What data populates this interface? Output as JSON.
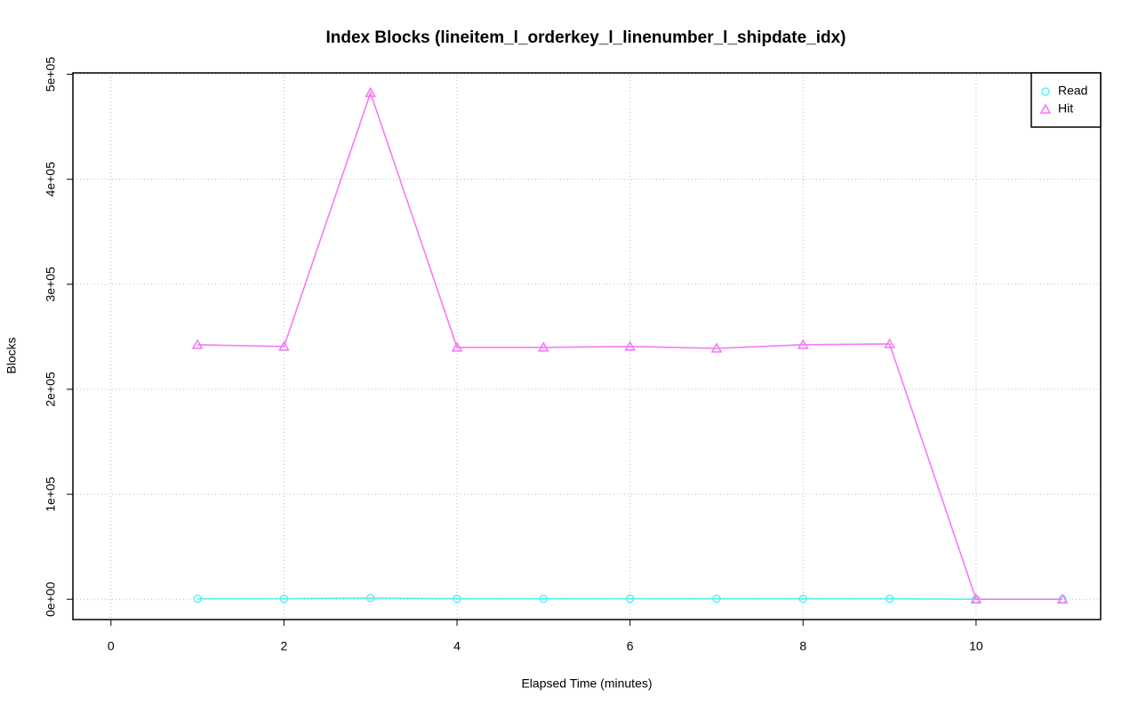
{
  "chart_data": {
    "type": "line",
    "title": "Index Blocks (lineitem_l_orderkey_l_linenumber_l_shipdate_idx)",
    "x_label": "Elapsed Time (minutes)",
    "y_label": "Blocks",
    "x": [
      1,
      2,
      3,
      4,
      5,
      6,
      7,
      8,
      9,
      10,
      11
    ],
    "series": [
      {
        "name": "Read",
        "color": "#55f0f0",
        "marker": "circle",
        "values": [
          500,
          600,
          1200,
          500,
          500,
          600,
          500,
          500,
          500,
          0,
          0
        ]
      },
      {
        "name": "Hit",
        "color": "#f57af5",
        "marker": "triangle",
        "values": [
          242400,
          240700,
          482300,
          239900,
          239900,
          240700,
          239000,
          242400,
          243200,
          0,
          0
        ]
      }
    ],
    "xlim": [
      -0.44,
      11.44
    ],
    "ylim": [
      -19300,
      501300
    ],
    "xticks": [
      0,
      2,
      4,
      6,
      8,
      10
    ],
    "yticks": [
      {
        "value": 0,
        "label": "0e+00"
      },
      {
        "value": 100000,
        "label": "1e+05"
      },
      {
        "value": 200000,
        "label": "2e+05"
      },
      {
        "value": 300000,
        "label": "3e+05"
      },
      {
        "value": 400000,
        "label": "4e+05"
      },
      {
        "value": 500000,
        "label": "5e+05"
      }
    ],
    "grid": true,
    "legend": "top-right"
  }
}
